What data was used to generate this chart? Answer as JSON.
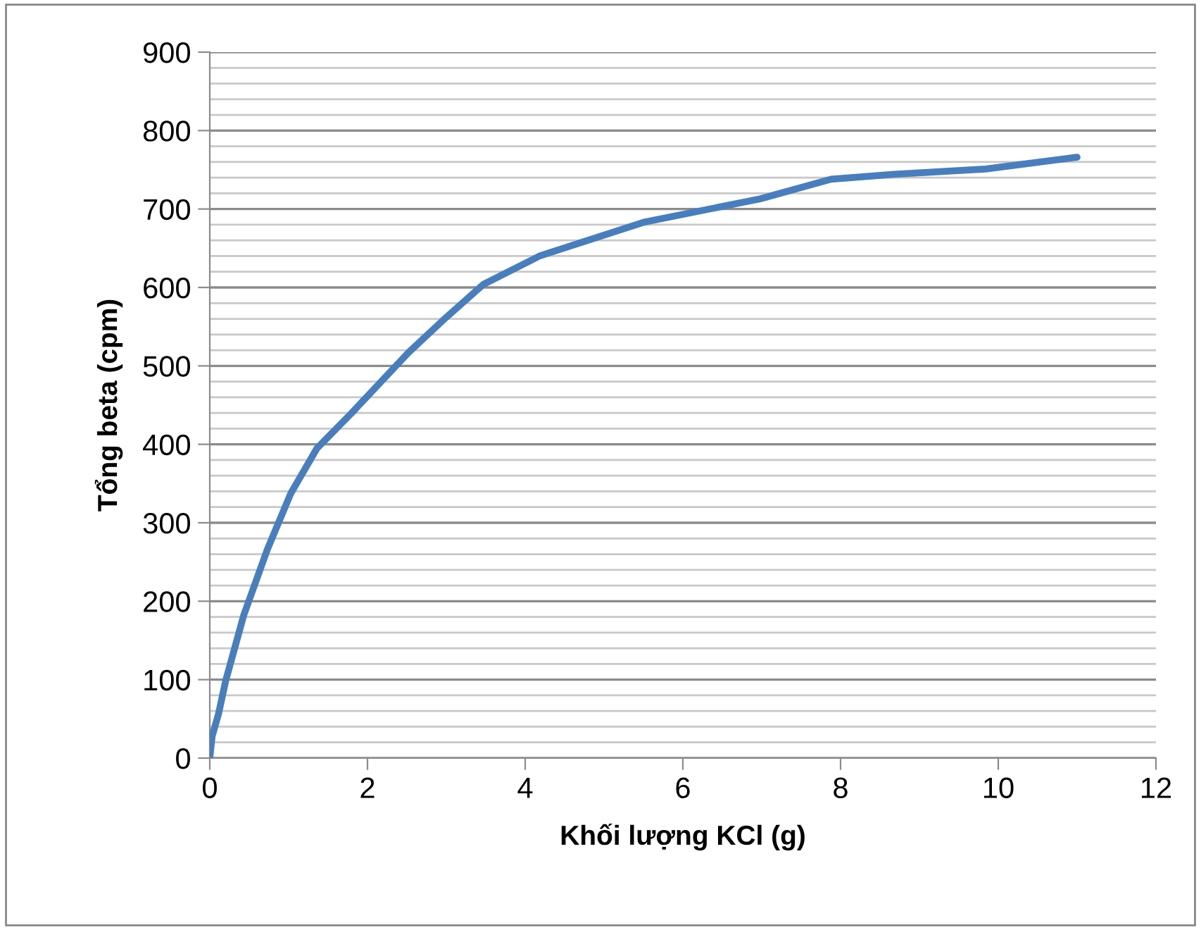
{
  "chart_data": {
    "type": "line",
    "xlabel": "Khối lượng KCl (g)",
    "ylabel": "Tổng beta (cpm)",
    "x": [
      0,
      0.03,
      0.11,
      0.2,
      0.43,
      0.73,
      1.03,
      1.36,
      1.8,
      2.52,
      3.0,
      3.47,
      4.18,
      5.5,
      6.98,
      7.88,
      8.65,
      9.84,
      11.0
    ],
    "series": [
      {
        "color": "#4a7ebb",
        "values": [
          0,
          28,
          56,
          98,
          182,
          266,
          338,
          395,
          440,
          517,
          562,
          604,
          640,
          683,
          713,
          738,
          744,
          751,
          766
        ]
      }
    ],
    "xlim": [
      0,
      12
    ],
    "xticks": [
      0,
      2,
      4,
      6,
      8,
      10,
      12
    ],
    "ylim": [
      0,
      900
    ],
    "yticks": [
      0,
      100,
      200,
      300,
      400,
      500,
      600,
      700,
      800,
      900
    ],
    "grid": "y",
    "marker": "none",
    "line_style": "solid"
  }
}
